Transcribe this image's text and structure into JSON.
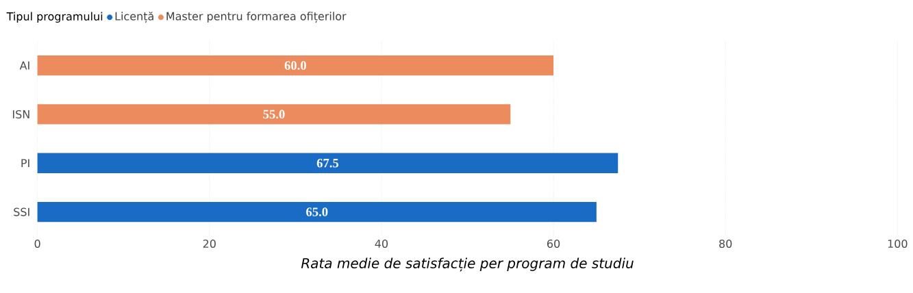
{
  "chart_data": {
    "type": "bar",
    "orientation": "horizontal",
    "xlabel": "Rata medie de satisfacție per program de studiu",
    "legend_title": "Tipul programului",
    "legend": "top left",
    "grid": "x",
    "categories": [
      "AI",
      "ISN",
      "PI",
      "SSI"
    ],
    "series": [
      {
        "name": "Licență",
        "color": "#1a6bc4",
        "values": [
          null,
          null,
          67.5,
          65.0
        ],
        "value_labels": [
          null,
          null,
          "67.5",
          "65.0"
        ]
      },
      {
        "name": "Master pentru formarea ofițerilor",
        "color": "#ec8b5e",
        "values": [
          60.0,
          55.0,
          null,
          null
        ],
        "value_labels": [
          "60.0",
          "55.0",
          null,
          null
        ]
      }
    ],
    "xlim": [
      0,
      100
    ],
    "xticks": [
      0,
      20,
      40,
      60,
      80,
      100
    ]
  }
}
